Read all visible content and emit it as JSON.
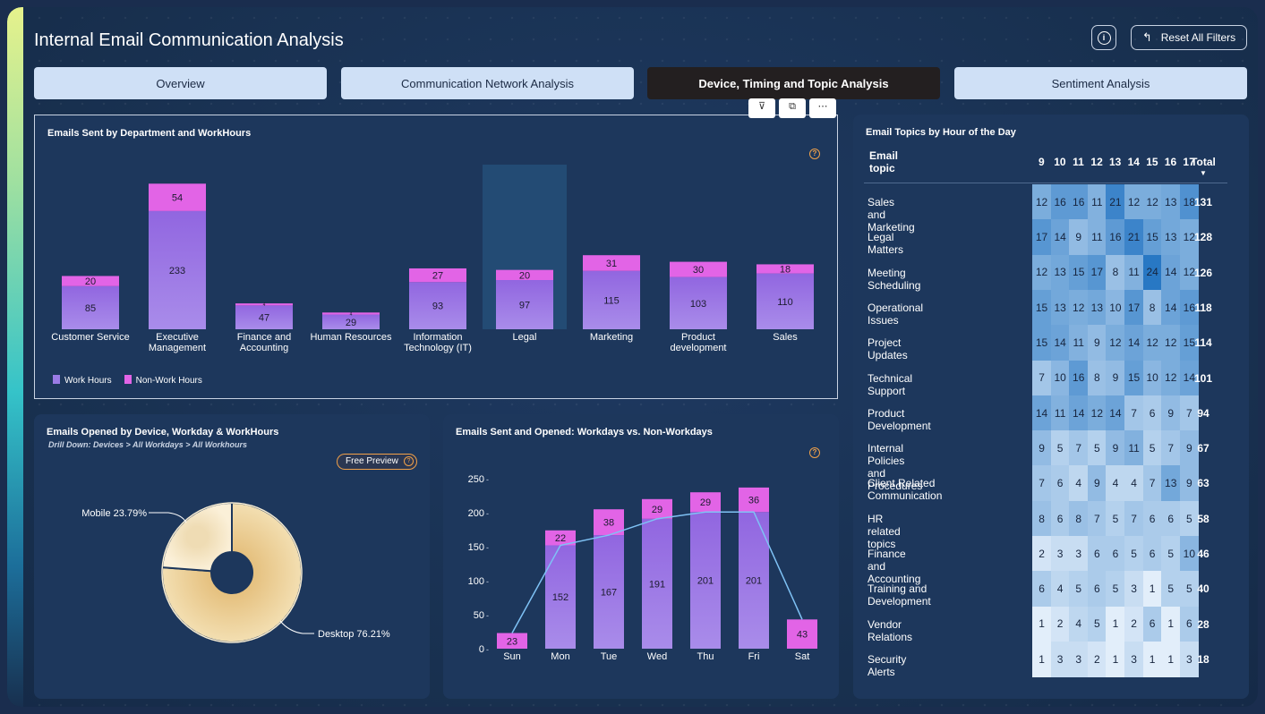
{
  "app": {
    "title": "Internal Email Communication Analysis",
    "reset_label": "Reset All Filters",
    "info_icon_text": "i"
  },
  "tabs": [
    {
      "label": "Overview",
      "active": false
    },
    {
      "label": "Communication Network Analysis",
      "active": false
    },
    {
      "label": "Device, Timing and Topic Analysis",
      "active": true
    },
    {
      "label": "Sentiment Analysis",
      "active": false
    }
  ],
  "colors": {
    "work_hours": "#9a7be6",
    "non_work_hours": "#e264e6",
    "desktop": "#e9c98e",
    "mobile": "#f4e2bc",
    "heat_low": "#e6f0fa",
    "heat_high": "#2b7cc6"
  },
  "dept_chart": {
    "title": "Emails Sent by Department and WorkHours",
    "help_text": "?",
    "legend": [
      "Work Hours",
      "Non-Work Hours"
    ],
    "highlighted_category": "Legal"
  },
  "device_chart": {
    "title": "Emails Opened by Device, Workday & WorkHours",
    "drill_label": "Drill Down: Devices > All Workdays > All Workhours",
    "free_preview_label": "Free Preview",
    "help_text": "?"
  },
  "weekday_chart": {
    "title": "Emails Sent and Opened: Workdays vs. Non-Workdays",
    "help_text": "?"
  },
  "topics_table": {
    "title": "Email Topics by Hour of the Day",
    "col_topic": "Email topic",
    "hours": [
      "9",
      "10",
      "11",
      "12",
      "13",
      "14",
      "15",
      "16",
      "17"
    ],
    "col_total": "Total",
    "rows": [
      {
        "topic": "Sales and Marketing",
        "values": [
          12,
          16,
          16,
          11,
          21,
          12,
          12,
          13,
          18
        ],
        "total": "131"
      },
      {
        "topic": "Legal Matters",
        "values": [
          17,
          14,
          9,
          11,
          16,
          21,
          15,
          13,
          12
        ],
        "total": "128"
      },
      {
        "topic": "Meeting Scheduling",
        "values": [
          12,
          13,
          15,
          17,
          8,
          11,
          24,
          14,
          12
        ],
        "total": "126"
      },
      {
        "topic": "Operational Issues",
        "values": [
          15,
          13,
          12,
          13,
          10,
          17,
          8,
          14,
          16
        ],
        "total": "118"
      },
      {
        "topic": "Project Updates",
        "values": [
          15,
          14,
          11,
          9,
          12,
          14,
          12,
          12,
          15
        ],
        "total": "114"
      },
      {
        "topic": "Technical Support",
        "values": [
          7,
          10,
          16,
          8,
          9,
          15,
          10,
          12,
          14
        ],
        "total": "101"
      },
      {
        "topic": "Product Development",
        "values": [
          14,
          11,
          14,
          12,
          14,
          7,
          6,
          9,
          7
        ],
        "total": "94"
      },
      {
        "topic": "Internal Policies and Procedures",
        "values": [
          9,
          5,
          7,
          5,
          9,
          11,
          5,
          7,
          9
        ],
        "total": "67"
      },
      {
        "topic": "Client Related Communication",
        "values": [
          7,
          6,
          4,
          9,
          4,
          4,
          7,
          13,
          9
        ],
        "total": "63"
      },
      {
        "topic": "HR related topics",
        "values": [
          8,
          6,
          8,
          7,
          5,
          7,
          6,
          6,
          5
        ],
        "total": "58"
      },
      {
        "topic": "Finance and Accounting",
        "values": [
          2,
          3,
          3,
          6,
          6,
          5,
          6,
          5,
          10
        ],
        "total": "46"
      },
      {
        "topic": "Training and Development",
        "values": [
          6,
          4,
          5,
          6,
          5,
          3,
          1,
          5,
          5
        ],
        "total": "40"
      },
      {
        "topic": "Vendor Relations",
        "values": [
          1,
          2,
          4,
          5,
          1,
          2,
          6,
          1,
          6
        ],
        "total": "28"
      },
      {
        "topic": "Security Alerts",
        "values": [
          1,
          3,
          3,
          2,
          1,
          3,
          1,
          1,
          3
        ],
        "total": "18"
      }
    ]
  },
  "chart_data": [
    {
      "type": "bar",
      "stacked": true,
      "title": "Emails Sent by Department and WorkHours",
      "categories": [
        "Customer Service",
        "Executive Management",
        "Finance and Accounting",
        "Human Resources",
        "Information Technology (IT)",
        "Legal",
        "Marketing",
        "Product development",
        "Sales"
      ],
      "series": [
        {
          "name": "Work Hours",
          "values": [
            85,
            233,
            47,
            29,
            93,
            97,
            115,
            103,
            110
          ]
        },
        {
          "name": "Non-Work Hours",
          "values": [
            20,
            54,
            4,
            4,
            27,
            20,
            31,
            30,
            18
          ]
        }
      ],
      "legend_position": "bottom-left"
    },
    {
      "type": "pie",
      "donut": true,
      "title": "Emails Opened by Device, Workday & WorkHours",
      "slices": [
        {
          "label": "Desktop",
          "value": 76.21,
          "display": "Desktop 76.21%"
        },
        {
          "label": "Mobile",
          "value": 23.79,
          "display": "Mobile 23.79%"
        }
      ]
    },
    {
      "type": "bar",
      "stacked": true,
      "title": "Emails Sent and Opened: Workdays vs. Non-Workdays",
      "categories": [
        "Sun",
        "Mon",
        "Tue",
        "Wed",
        "Thu",
        "Fri",
        "Sat"
      ],
      "series": [
        {
          "name": "Work Hours",
          "values": [
            0,
            152,
            167,
            191,
            201,
            201,
            0
          ]
        },
        {
          "name": "Non-Work Hours",
          "values": [
            23,
            22,
            38,
            29,
            29,
            36,
            43
          ]
        }
      ],
      "line": {
        "values": [
          23,
          152,
          167,
          191,
          201,
          201,
          43
        ]
      },
      "y_ticks": [
        0,
        50,
        100,
        150,
        200,
        250
      ],
      "ylim": [
        0,
        250
      ],
      "grid": false
    }
  ]
}
